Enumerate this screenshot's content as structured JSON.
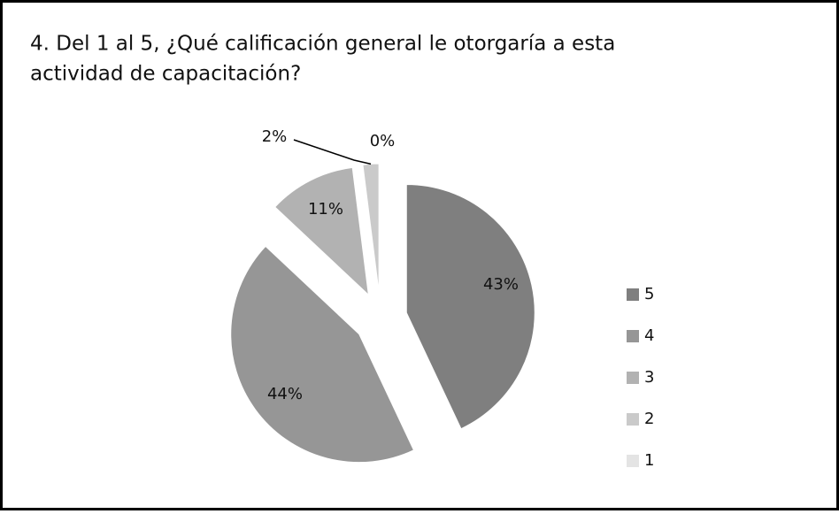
{
  "chart_data": {
    "type": "pie",
    "title": "4. Del 1 al 5, ¿Qué calificación general le otorgaría a esta actividad de capacitación?",
    "title_lines": [
      "4. Del 1 al 5, ¿Qué calificación general le otorgaría a esta",
      "actividad de capacitación?"
    ],
    "categories": [
      "5",
      "4",
      "3",
      "2",
      "1"
    ],
    "values": [
      43,
      44,
      11,
      2,
      0
    ],
    "value_labels": [
      "43%",
      "44%",
      "11%",
      "2%",
      "0%"
    ],
    "colors": [
      "#7f7f7f",
      "#969696",
      "#b2b2b2",
      "#cacaca",
      "#e4e4e4"
    ],
    "exploded": true,
    "legend": "right"
  }
}
